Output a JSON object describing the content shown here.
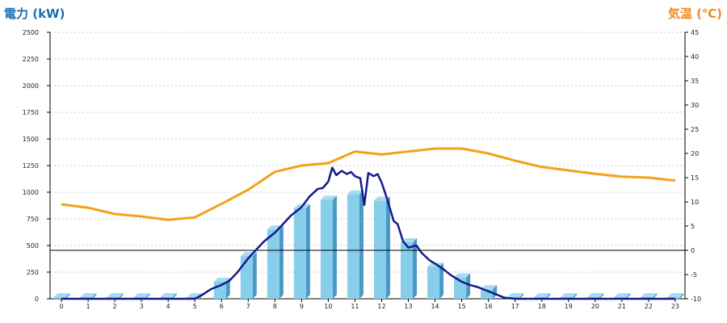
{
  "chart_data": {
    "type": "bar+line",
    "y_left": {
      "label": "電力 (kW)",
      "min": 0,
      "max": 2500,
      "ticks": [
        0,
        250,
        500,
        750,
        1000,
        1250,
        1500,
        1750,
        2000,
        2250,
        2500
      ]
    },
    "y_right": {
      "label": "気温 (℃)",
      "min": -10,
      "max": 45,
      "ticks": [
        -10,
        -5,
        0,
        5,
        10,
        15,
        20,
        25,
        30,
        35,
        40,
        45
      ]
    },
    "x": [
      0,
      1,
      2,
      3,
      4,
      5,
      6,
      7,
      8,
      9,
      10,
      11,
      12,
      13,
      14,
      15,
      16,
      17,
      18,
      19,
      20,
      21,
      22,
      23
    ],
    "bar_series": {
      "values": [
        5,
        5,
        5,
        5,
        5,
        5,
        160,
        400,
        650,
        850,
        930,
        980,
        920,
        530,
        300,
        200,
        90,
        10,
        5,
        5,
        5,
        5,
        5,
        5
      ]
    },
    "power_line": {
      "points": [
        [
          0,
          0
        ],
        [
          1,
          0
        ],
        [
          2,
          0
        ],
        [
          3,
          0
        ],
        [
          4,
          0
        ],
        [
          5,
          0
        ],
        [
          5.3,
          40
        ],
        [
          5.6,
          90
        ],
        [
          6,
          130
        ],
        [
          6.3,
          170
        ],
        [
          6.6,
          250
        ],
        [
          7,
          380
        ],
        [
          7.3,
          460
        ],
        [
          7.6,
          540
        ],
        [
          8,
          620
        ],
        [
          8.3,
          700
        ],
        [
          8.6,
          780
        ],
        [
          9,
          860
        ],
        [
          9.3,
          960
        ],
        [
          9.6,
          1030
        ],
        [
          9.8,
          1040
        ],
        [
          10,
          1100
        ],
        [
          10.15,
          1230
        ],
        [
          10.3,
          1160
        ],
        [
          10.5,
          1200
        ],
        [
          10.7,
          1170
        ],
        [
          10.85,
          1190
        ],
        [
          11,
          1150
        ],
        [
          11.2,
          1130
        ],
        [
          11.35,
          880
        ],
        [
          11.5,
          1180
        ],
        [
          11.7,
          1150
        ],
        [
          11.85,
          1170
        ],
        [
          12,
          1090
        ],
        [
          12.2,
          940
        ],
        [
          12.45,
          730
        ],
        [
          12.6,
          700
        ],
        [
          12.8,
          540
        ],
        [
          13,
          480
        ],
        [
          13.3,
          500
        ],
        [
          13.5,
          430
        ],
        [
          13.8,
          360
        ],
        [
          14,
          330
        ],
        [
          14.3,
          280
        ],
        [
          14.6,
          220
        ],
        [
          15,
          160
        ],
        [
          15.3,
          130
        ],
        [
          15.6,
          110
        ],
        [
          16,
          70
        ],
        [
          16.3,
          40
        ],
        [
          16.6,
          10
        ],
        [
          17,
          0
        ],
        [
          18,
          0
        ],
        [
          19,
          0
        ],
        [
          20,
          0
        ],
        [
          21,
          0
        ],
        [
          22,
          0
        ],
        [
          23,
          0
        ]
      ]
    },
    "temperature_line": {
      "values": [
        9.5,
        8.8,
        7.5,
        7.0,
        6.3,
        6.8,
        9.6,
        12.5,
        16.2,
        17.5,
        18.0,
        20.4,
        19.8,
        20.4,
        21.0,
        21.0,
        20.0,
        18.5,
        17.2,
        16.5,
        15.8,
        15.2,
        15.0,
        14.4
      ]
    },
    "colors": {
      "bar_front": "#87ceeb",
      "bar_side": "#4a98c4",
      "bar_top": "#a8dcf2",
      "power_line": "#141a8c",
      "temperature_line": "#f4a11a",
      "grid": "#c8c8c8",
      "zero_line": "#000000"
    },
    "grid": true
  }
}
